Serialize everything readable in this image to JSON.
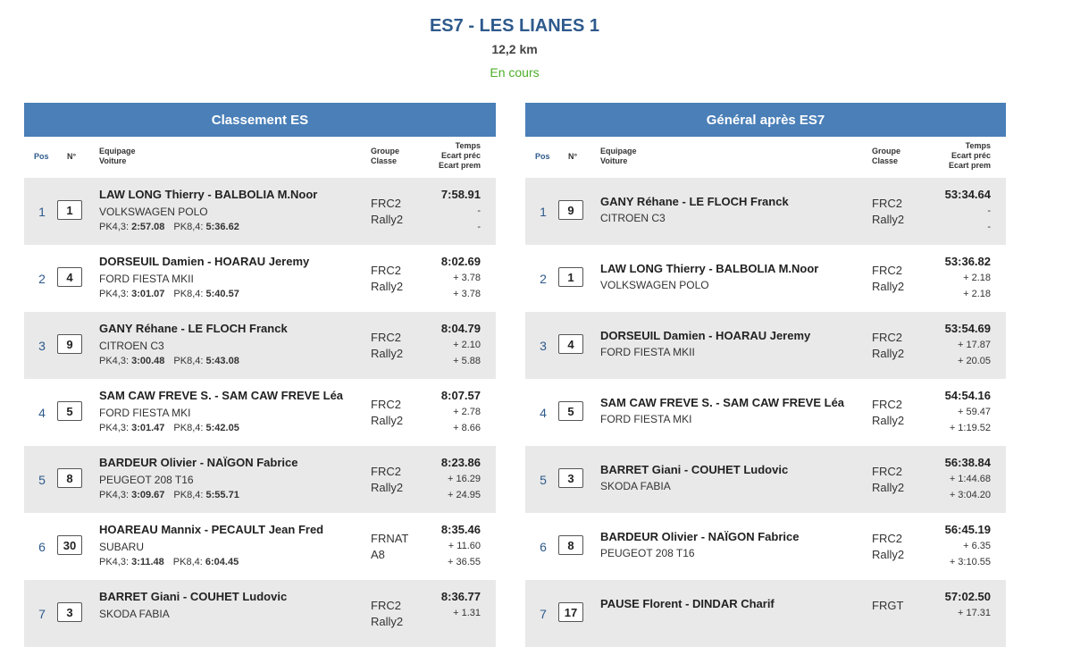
{
  "stage": {
    "title": "ES7 - LES LIANES 1",
    "distance": "12,2 km",
    "status": "En cours"
  },
  "headers": {
    "pos": "Pos",
    "num": "N°",
    "equipage": "Equipage",
    "voiture": "Voiture",
    "groupe": "Groupe",
    "classe": "Classe",
    "temps": "Temps",
    "ecart_prec": "Ecart préc",
    "ecart_prem": "Ecart prem"
  },
  "left": {
    "title": "Classement ES",
    "rows": [
      {
        "pos": "1",
        "num": "1",
        "crew": "LAW LONG Thierry - BALBOLIA M.Noor",
        "car": "VOLKSWAGEN POLO",
        "pk1_label": "PK4,3:",
        "pk1": "2:57.08",
        "pk2_label": "PK8,4:",
        "pk2": "5:36.62",
        "groupe": "FRC2",
        "classe": "Rally2",
        "time": "7:58.91",
        "gap_prev": "-",
        "gap_first": "-"
      },
      {
        "pos": "2",
        "num": "4",
        "crew": "DORSEUIL Damien - HOARAU Jeremy",
        "car": "FORD FIESTA MKII",
        "pk1_label": "PK4,3:",
        "pk1": "3:01.07",
        "pk2_label": "PK8,4:",
        "pk2": "5:40.57",
        "groupe": "FRC2",
        "classe": "Rally2",
        "time": "8:02.69",
        "gap_prev": "+ 3.78",
        "gap_first": "+ 3.78"
      },
      {
        "pos": "3",
        "num": "9",
        "crew": "GANY Réhane - LE FLOCH Franck",
        "car": "CITROEN C3",
        "pk1_label": "PK4,3:",
        "pk1": "3:00.48",
        "pk2_label": "PK8,4:",
        "pk2": "5:43.08",
        "groupe": "FRC2",
        "classe": "Rally2",
        "time": "8:04.79",
        "gap_prev": "+ 2.10",
        "gap_first": "+ 5.88"
      },
      {
        "pos": "4",
        "num": "5",
        "crew": "SAM CAW FREVE S. - SAM CAW FREVE Léa",
        "car": "FORD FIESTA MKI",
        "pk1_label": "PK4,3:",
        "pk1": "3:01.47",
        "pk2_label": "PK8,4:",
        "pk2": "5:42.05",
        "groupe": "FRC2",
        "classe": "Rally2",
        "time": "8:07.57",
        "gap_prev": "+ 2.78",
        "gap_first": "+ 8.66"
      },
      {
        "pos": "5",
        "num": "8",
        "crew": "BARDEUR Olivier - NAÏGON Fabrice",
        "car": "PEUGEOT 208 T16",
        "pk1_label": "PK4,3:",
        "pk1": "3:09.67",
        "pk2_label": "PK8,4:",
        "pk2": "5:55.71",
        "groupe": "FRC2",
        "classe": "Rally2",
        "time": "8:23.86",
        "gap_prev": "+ 16.29",
        "gap_first": "+ 24.95"
      },
      {
        "pos": "6",
        "num": "30",
        "crew": "HOAREAU Mannix - PECAULT Jean Fred",
        "car": "SUBARU",
        "pk1_label": "PK4,3:",
        "pk1": "3:11.48",
        "pk2_label": "PK8,4:",
        "pk2": "6:04.45",
        "groupe": "FRNAT",
        "classe": "A8",
        "time": "8:35.46",
        "gap_prev": "+ 11.60",
        "gap_first": "+ 36.55"
      },
      {
        "pos": "7",
        "num": "3",
        "crew": "BARRET Giani - COUHET Ludovic",
        "car": "SKODA FABIA",
        "pk1_label": "",
        "pk1": "",
        "pk2_label": "",
        "pk2": "",
        "groupe": "FRC2",
        "classe": "Rally2",
        "time": "8:36.77",
        "gap_prev": "+ 1.31",
        "gap_first": ""
      }
    ]
  },
  "right": {
    "title": "Général après ES7",
    "rows": [
      {
        "pos": "1",
        "num": "9",
        "crew": "GANY Réhane - LE FLOCH Franck",
        "car": "CITROEN C3",
        "groupe": "FRC2",
        "classe": "Rally2",
        "time": "53:34.64",
        "gap_prev": "-",
        "gap_first": "-"
      },
      {
        "pos": "2",
        "num": "1",
        "crew": "LAW LONG Thierry - BALBOLIA M.Noor",
        "car": "VOLKSWAGEN POLO",
        "groupe": "FRC2",
        "classe": "Rally2",
        "time": "53:36.82",
        "gap_prev": "+ 2.18",
        "gap_first": "+ 2.18"
      },
      {
        "pos": "3",
        "num": "4",
        "crew": "DORSEUIL Damien - HOARAU Jeremy",
        "car": "FORD FIESTA MKII",
        "groupe": "FRC2",
        "classe": "Rally2",
        "time": "53:54.69",
        "gap_prev": "+ 17.87",
        "gap_first": "+ 20.05"
      },
      {
        "pos": "4",
        "num": "5",
        "crew": "SAM CAW FREVE S. - SAM CAW FREVE Léa",
        "car": "FORD FIESTA MKI",
        "groupe": "FRC2",
        "classe": "Rally2",
        "time": "54:54.16",
        "gap_prev": "+ 59.47",
        "gap_first": "+ 1:19.52"
      },
      {
        "pos": "5",
        "num": "3",
        "crew": "BARRET Giani - COUHET Ludovic",
        "car": "SKODA FABIA",
        "groupe": "FRC2",
        "classe": "Rally2",
        "time": "56:38.84",
        "gap_prev": "+ 1:44.68",
        "gap_first": "+ 3:04.20"
      },
      {
        "pos": "6",
        "num": "8",
        "crew": "BARDEUR Olivier - NAÏGON Fabrice",
        "car": "PEUGEOT 208 T16",
        "groupe": "FRC2",
        "classe": "Rally2",
        "time": "56:45.19",
        "gap_prev": "+ 6.35",
        "gap_first": "+ 3:10.55"
      },
      {
        "pos": "7",
        "num": "17",
        "crew": "PAUSE Florent - DINDAR Charif",
        "car": "",
        "groupe": "FRGT",
        "classe": "",
        "time": "57:02.50",
        "gap_prev": "+ 17.31",
        "gap_first": ""
      }
    ]
  }
}
